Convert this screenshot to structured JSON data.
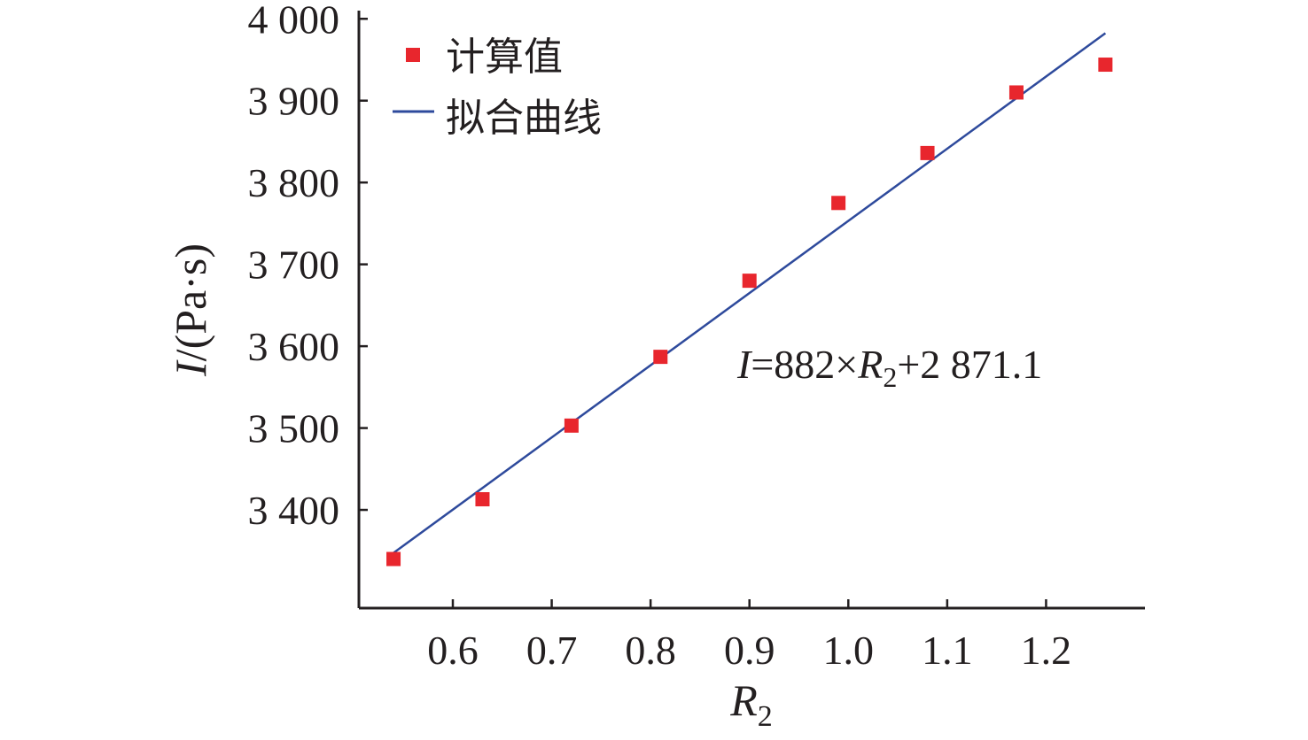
{
  "chart_data": {
    "type": "scatter",
    "xlabel": {
      "var": "R",
      "sub": "2"
    },
    "ylabel": {
      "var": "I",
      "unit": "/(Pa·s)"
    },
    "xlim": [
      0.505,
      1.3
    ],
    "ylim": [
      3280,
      4010
    ],
    "x_ticks": [
      0.6,
      0.7,
      0.8,
      0.9,
      1.0,
      1.1,
      1.2
    ],
    "x_tick_labels": [
      "0.6",
      "0.7",
      "0.8",
      "0.9",
      "1.0",
      "1.1",
      "1.2"
    ],
    "y_ticks": [
      3400,
      3500,
      3600,
      3700,
      3800,
      3900,
      4000
    ],
    "y_tick_labels": [
      "3 400",
      "3 500",
      "3 600",
      "3 700",
      "3 800",
      "3 900",
      "4 000"
    ],
    "grid": false,
    "legend_position": "top-left",
    "series": [
      {
        "name": "计算值",
        "kind": "scatter",
        "marker": "square",
        "color": "#e8262d",
        "x": [
          0.54,
          0.63,
          0.72,
          0.81,
          0.9,
          0.99,
          1.08,
          1.17,
          1.26
        ],
        "y": [
          3340,
          3413,
          3503,
          3587,
          3680,
          3775,
          3836,
          3910,
          3944
        ]
      },
      {
        "name": "拟合曲线",
        "kind": "line",
        "color": "#2e4a9c",
        "x": [
          0.54,
          1.26
        ],
        "y": [
          3347.4,
          3982.4
        ]
      }
    ],
    "annotation": {
      "parts": [
        {
          "text": "I",
          "italic": true
        },
        {
          "text": "=882×",
          "italic": false
        },
        {
          "text": "R",
          "italic": true
        },
        {
          "text": "2",
          "sub": true
        },
        {
          "text": "+2 871.1",
          "italic": false
        }
      ]
    }
  }
}
